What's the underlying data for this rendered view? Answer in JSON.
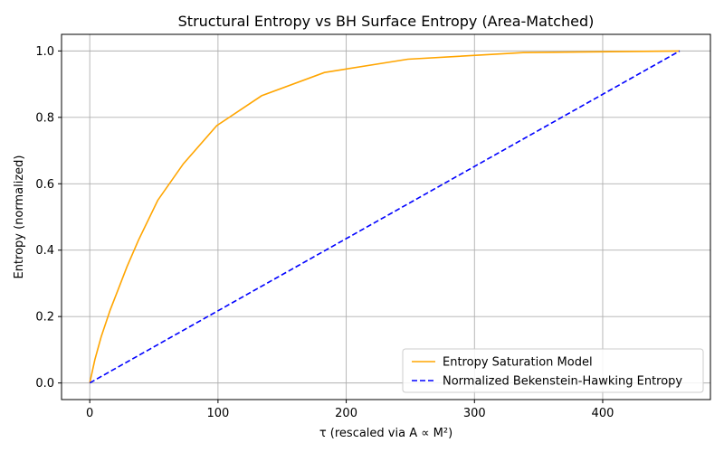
{
  "chart_data": {
    "type": "line",
    "title": "Structural Entropy vs BH Surface Entropy (Area-Matched)",
    "xlabel": "τ (rescaled via A ∝ M²)",
    "ylabel": "Entropy (normalized)",
    "xlim": [
      -22,
      484
    ],
    "ylim": [
      -0.05,
      1.05
    ],
    "xticks": [
      0,
      100,
      200,
      300,
      400
    ],
    "yticks": [
      0.0,
      0.2,
      0.4,
      0.6,
      0.8,
      1.0
    ],
    "xtick_labels": [
      "0",
      "100",
      "200",
      "300",
      "400"
    ],
    "ytick_labels": [
      "0.0",
      "0.2",
      "0.4",
      "0.6",
      "0.8",
      "1.0"
    ],
    "grid": true,
    "legend_position": "lower-right",
    "series": [
      {
        "name": "Entropy Saturation Model",
        "color": "#ffa500",
        "style": "solid",
        "x": [
          0,
          4,
          9,
          16,
          23,
          29,
          38,
          53,
          73,
          99,
          134,
          183,
          248,
          338,
          460
        ],
        "y": [
          0.0,
          0.07,
          0.14,
          0.22,
          0.29,
          0.35,
          0.43,
          0.55,
          0.66,
          0.775,
          0.865,
          0.935,
          0.975,
          0.995,
          1.0
        ]
      },
      {
        "name": "Normalized Bekenstein-Hawking Entropy",
        "color": "#0000ff",
        "style": "dashed",
        "x": [
          0,
          460
        ],
        "y": [
          0.0,
          1.0
        ]
      }
    ]
  }
}
